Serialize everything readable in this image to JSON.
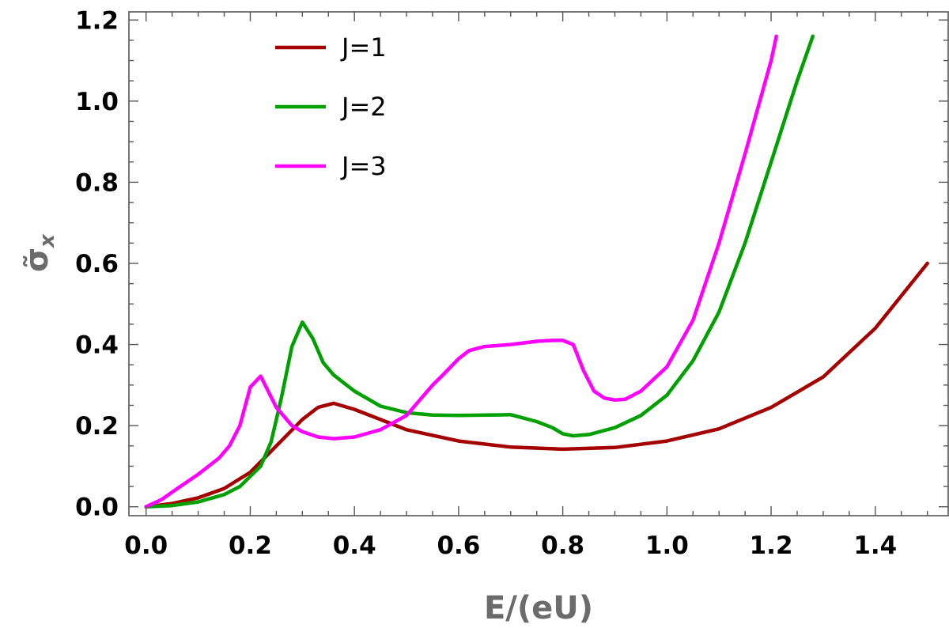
{
  "chart_data": {
    "type": "line",
    "xlabel": "E/(eU)",
    "ylabel": "σ̃x",
    "xlim": [
      -0.033,
      1.54
    ],
    "ylim": [
      -0.022,
      1.22
    ],
    "xticks": [
      "0.0",
      "0.2",
      "0.4",
      "0.6",
      "0.8",
      "1.0",
      "1.2",
      "1.4"
    ],
    "yticks": [
      "0.0",
      "0.2",
      "0.4",
      "0.6",
      "0.8",
      "1.0",
      "1.2"
    ],
    "grid": false,
    "legend_position": "top-left",
    "series": [
      {
        "name": "J=1",
        "color": "#a50000",
        "x": [
          0.0,
          0.05,
          0.1,
          0.15,
          0.2,
          0.25,
          0.3,
          0.33,
          0.36,
          0.4,
          0.45,
          0.5,
          0.6,
          0.7,
          0.8,
          0.9,
          1.0,
          1.1,
          1.2,
          1.3,
          1.4,
          1.5
        ],
        "y": [
          0.0,
          0.008,
          0.022,
          0.045,
          0.085,
          0.15,
          0.215,
          0.245,
          0.255,
          0.24,
          0.215,
          0.19,
          0.162,
          0.147,
          0.142,
          0.146,
          0.162,
          0.192,
          0.245,
          0.32,
          0.44,
          0.6
        ]
      },
      {
        "name": "J=2",
        "color": "#00a000",
        "x": [
          0.0,
          0.05,
          0.1,
          0.15,
          0.18,
          0.2,
          0.22,
          0.24,
          0.26,
          0.28,
          0.3,
          0.32,
          0.34,
          0.36,
          0.38,
          0.4,
          0.45,
          0.5,
          0.55,
          0.6,
          0.7,
          0.75,
          0.78,
          0.8,
          0.82,
          0.85,
          0.9,
          0.95,
          1.0,
          1.05,
          1.1,
          1.15,
          1.2,
          1.25,
          1.28
        ],
        "y": [
          0.0,
          0.003,
          0.012,
          0.03,
          0.05,
          0.075,
          0.1,
          0.16,
          0.27,
          0.395,
          0.455,
          0.415,
          0.355,
          0.325,
          0.305,
          0.285,
          0.248,
          0.232,
          0.226,
          0.225,
          0.227,
          0.21,
          0.195,
          0.18,
          0.175,
          0.178,
          0.195,
          0.225,
          0.275,
          0.36,
          0.48,
          0.65,
          0.85,
          1.05,
          1.16
        ]
      },
      {
        "name": "J=3",
        "color": "#ff00ff",
        "x": [
          0.0,
          0.03,
          0.06,
          0.1,
          0.14,
          0.16,
          0.18,
          0.2,
          0.22,
          0.25,
          0.28,
          0.3,
          0.33,
          0.36,
          0.4,
          0.45,
          0.5,
          0.55,
          0.57,
          0.6,
          0.62,
          0.65,
          0.7,
          0.75,
          0.78,
          0.8,
          0.82,
          0.84,
          0.86,
          0.88,
          0.9,
          0.92,
          0.95,
          1.0,
          1.05,
          1.1,
          1.15,
          1.2,
          1.21
        ],
        "y": [
          0.0,
          0.018,
          0.045,
          0.08,
          0.12,
          0.15,
          0.2,
          0.295,
          0.322,
          0.245,
          0.2,
          0.185,
          0.172,
          0.168,
          0.172,
          0.19,
          0.225,
          0.3,
          0.325,
          0.365,
          0.385,
          0.395,
          0.4,
          0.408,
          0.41,
          0.41,
          0.4,
          0.335,
          0.285,
          0.268,
          0.263,
          0.265,
          0.285,
          0.345,
          0.46,
          0.65,
          0.87,
          1.1,
          1.16
        ]
      }
    ]
  }
}
